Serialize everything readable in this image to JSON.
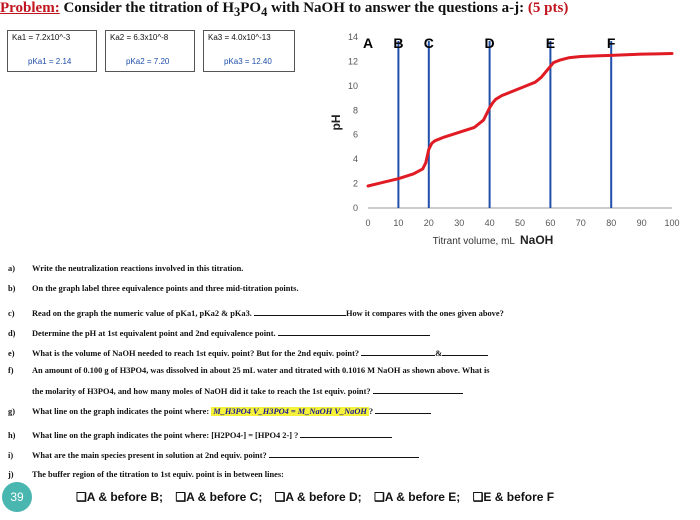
{
  "header": {
    "label": "Problem:",
    "text_before": " Consider the titration of H",
    "sub1": "3",
    "text_mid1": "PO",
    "sub2": "4",
    "text_after": " with NaOH to answer the questions a-j: ",
    "points": "(5 pts)"
  },
  "constants": [
    {
      "k": "Ka1 = 7.2x10^-3",
      "pk": "pKa1 = 2.14"
    },
    {
      "k": "Ka2 = 6.3x10^-8",
      "pk": "pKa2 = 7.20"
    },
    {
      "k": "Ka3 = 4.0x10^-13",
      "pk": "pKa3 = 12.40"
    }
  ],
  "chart_data": {
    "type": "line",
    "xlabel": "Titrant volume, mL",
    "xlabel_suffix": "NaOH",
    "ylabel": "pH",
    "xlim": [
      0,
      100
    ],
    "ylim": [
      0,
      14
    ],
    "xticks": [
      0,
      10,
      20,
      30,
      40,
      50,
      60,
      70,
      80,
      90,
      100
    ],
    "yticks": [
      0,
      2,
      4,
      6,
      8,
      10,
      12,
      14
    ],
    "grid": false,
    "line_color": "#e01b24",
    "marker_color": "#1f4fa8",
    "x": [
      0,
      5,
      10,
      15,
      18,
      19,
      20,
      21,
      22,
      25,
      30,
      35,
      38,
      40,
      41,
      42,
      44,
      48,
      52,
      55,
      57,
      58,
      59,
      60,
      61,
      63,
      66,
      70,
      75,
      80,
      85,
      90,
      95,
      100
    ],
    "y": [
      1.8,
      2.1,
      2.4,
      2.8,
      3.2,
      3.7,
      4.8,
      5.3,
      5.5,
      5.8,
      6.2,
      6.6,
      7.2,
      8.2,
      8.6,
      8.9,
      9.2,
      9.6,
      10.0,
      10.3,
      10.7,
      11.0,
      11.3,
      11.6,
      11.9,
      12.1,
      12.3,
      12.4,
      12.45,
      12.5,
      12.55,
      12.6,
      12.62,
      12.65
    ],
    "markers": [
      {
        "label": "A",
        "x": 0
      },
      {
        "label": "B",
        "x": 10
      },
      {
        "label": "C",
        "x": 20
      },
      {
        "label": "D",
        "x": 40
      },
      {
        "label": "E",
        "x": 60
      },
      {
        "label": "F",
        "x": 80
      }
    ]
  },
  "questions": [
    {
      "letter": "a)",
      "text": "Write the neutralization reactions involved in this titration."
    },
    {
      "letter": "b)",
      "text": "On the graph label three equivalence points and  three mid-titration points."
    },
    {
      "letter": "c)",
      "text": "Read on the graph the numeric value of pKa1, pKa2 & pKa3.",
      "tail": "How it compares with the ones given above?"
    },
    {
      "letter": "d)",
      "text": "Determine the pH at 1st equivalent point and 2nd equivalence point."
    },
    {
      "letter": "e)",
      "text": "What is the volume of NaOH needed to reach 1st equiv. point? But for the 2nd equiv. point?",
      "tail": "&"
    },
    {
      "letter": "f)",
      "text": "An amount of 0.100 g of H3PO4, was dissolved in about 25 mL water and titrated with 0.1016 M NaOH as shown above. What is"
    },
    {
      "letter": "",
      "text": "the molarity of H3PO4, and how many moles of NaOH did it take to reach the 1st equiv. point?"
    },
    {
      "letter": "g)",
      "text": "What line on the graph indicates the point where:",
      "formula": "M_H3PO4 V_H3PO4 = M_NaOH V_NaOH",
      "tail": "?"
    },
    {
      "letter": "h)",
      "text": "What line on the graph indicates the point where: [H2PO4-] = [HPO4 2-] ?"
    },
    {
      "letter": "i)",
      "text": "What are the main species present in solution at 2nd equiv. point?"
    },
    {
      "letter": "j)",
      "text": "The buffer region of the titration to 1st equiv. point is in between lines:"
    }
  ],
  "page_number": "39",
  "options": [
    "❏A & before B;",
    "❏A & before C;",
    "❏A & before D;",
    "❏A & before E;",
    "❏E & before F"
  ]
}
